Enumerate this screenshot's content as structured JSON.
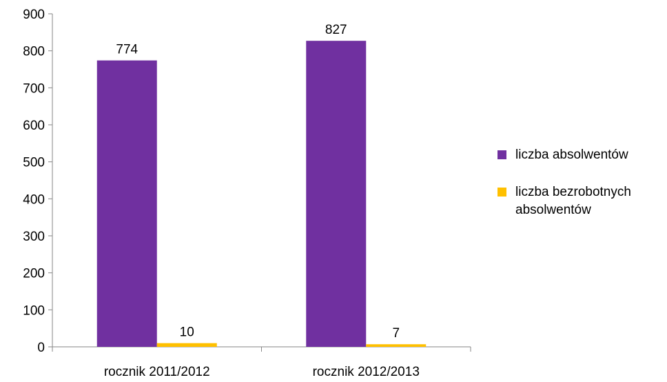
{
  "chart_data": {
    "type": "bar",
    "categories": [
      "rocznik 2011/2012",
      "rocznik 2012/2013"
    ],
    "series": [
      {
        "name": "liczba absolwentów",
        "values": [
          774,
          827
        ],
        "color": "#7030A0"
      },
      {
        "name": "liczba bezrobotnych absolwentów",
        "values": [
          10,
          7
        ],
        "color": "#FFC000"
      }
    ],
    "data_labels": [
      [
        "774",
        "827"
      ],
      [
        "10",
        "7"
      ]
    ],
    "ylim": [
      0,
      900
    ],
    "yticks": [
      "0",
      "100",
      "200",
      "300",
      "400",
      "500",
      "600",
      "700",
      "800",
      "900"
    ],
    "grid": false,
    "legend_position": "right",
    "title": "",
    "xlabel": "",
    "ylabel": ""
  }
}
